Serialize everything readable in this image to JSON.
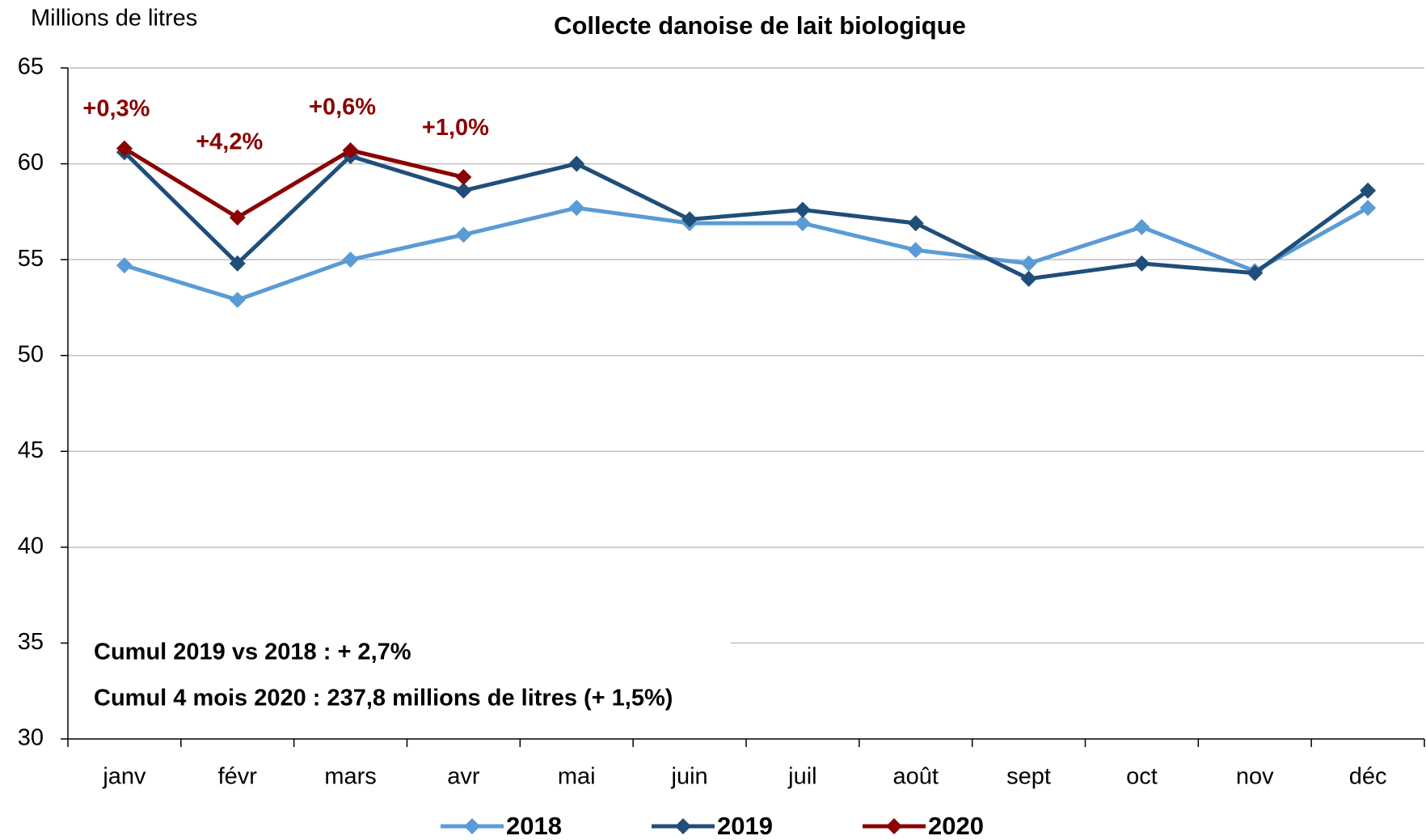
{
  "chart_data": {
    "type": "line",
    "title": "Collecte danoise de lait biologique",
    "y_label": "Millions de litres",
    "categories": [
      "janv",
      "févr",
      "mars",
      "avr",
      "mai",
      "juin",
      "juil",
      "août",
      "sept",
      "oct",
      "nov",
      "déc"
    ],
    "series": [
      {
        "name": "2018",
        "color": "#5b9bd5",
        "values": [
          54.7,
          52.9,
          55.0,
          56.3,
          57.7,
          56.9,
          56.9,
          55.5,
          54.8,
          56.7,
          54.4,
          57.7
        ]
      },
      {
        "name": "2019",
        "color": "#1f4e79",
        "values": [
          60.6,
          54.8,
          60.4,
          58.6,
          60.0,
          57.1,
          57.6,
          56.9,
          54.0,
          54.8,
          54.3,
          58.6
        ]
      },
      {
        "name": "2020",
        "color": "#8b0000",
        "values": [
          60.8,
          57.2,
          60.7,
          59.3,
          null,
          null,
          null,
          null,
          null,
          null,
          null,
          null
        ]
      }
    ],
    "annotations": [
      "+0,3%",
      "+4,2%",
      "+0,6%",
      "+1,0%"
    ],
    "notes": [
      {
        "text": "Cumul 2019 vs 2018 : + 2,7%",
        "color": "#1f4e79"
      },
      {
        "text": "Cumul 4 mois 2020 : 237,8 millions de litres (+ 1,5%)",
        "color": "#8b0000"
      }
    ],
    "ylim": [
      30,
      65
    ],
    "yticks": [
      30,
      35,
      40,
      45,
      50,
      55,
      60,
      65
    ],
    "grid": true,
    "legend": "bottom"
  }
}
